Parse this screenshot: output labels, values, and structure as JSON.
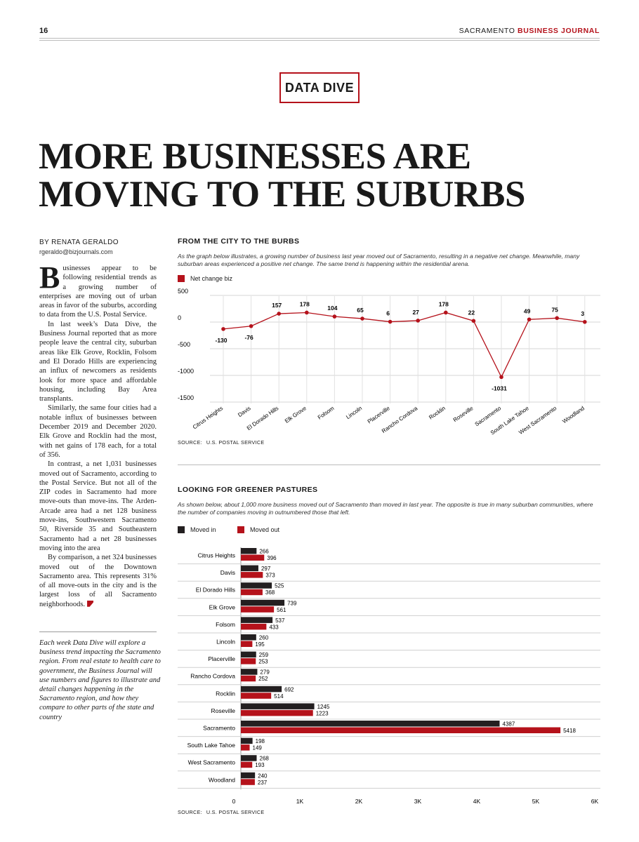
{
  "header": {
    "page_number": "16",
    "publication_prefix": "SACRAMENTO",
    "publication_brand": "BUSINESS JOURNAL"
  },
  "kicker": "DATA DIVE",
  "headline_line1": "MORE BUSINESSES ARE",
  "headline_line2": "MOVING TO THE SUBURBS",
  "byline": "BY RENATA GERALDO",
  "byline_email": "rgeraldo@bizjournals.com",
  "article": {
    "dropcap": "B",
    "p1": "usinesses appear to be following residential trends as a growing number of enterprises are moving out of urban areas in favor of the suburbs, according to data from the U.S. Postal Service.",
    "p2": "In last week’s Data Dive, the Business Journal reported that as more people leave the central city, suburban areas like Elk Grove, Rocklin, Folsom and El Dorado Hills are experiencing an influx of newcomers as residents look for more space and affordable housing, including Bay Area transplants.",
    "p3": "Similarly, the same four cities had a notable influx of businesses between December 2019 and December 2020. Elk Grove and Rocklin had the most, with net gains of 178 each, for a total of 356.",
    "p4": "In contrast, a net 1,031 businesses moved out of Sacramento, according to the Postal Service. But not all of the ZIP codes in Sacramento had more move-outs than move-ins. The Arden-Arcade area had a net 128 business move-ins, Southwestern Sacramento 50, Riverside 35 and Southeastern Sacramento had a net 28 businesses moving into the area",
    "p5": "By comparison, a net 324 businesses moved out of the Downtown Sacramento area. This represents 31% of all move-outs in the city and is the largest loss of all Sacramento neighborhoods."
  },
  "sidebar_note": "Each week Data Dive will explore a business trend impacting the Sacramento region. From real estate to health care to government, the Business Journal will use numbers and figures to illustrate and detail changes happening in the Sacramento region, and how they compare to other parts of the state and country",
  "colors": {
    "accent": "#b5121b",
    "dark": "#231f20"
  },
  "chart_data": [
    {
      "type": "line",
      "title": "FROM THE CITY TO THE BURBS",
      "subtitle": "As the graph below illustrates, a growing number of business last year moved out of Sacramento, resulting in a negative net change. Meanwhile, many suburban areas experienced a positive net change. The same trend is happening within the residential arena.",
      "legend": "Net change biz",
      "categories": [
        "Citrus Heights",
        "Davis",
        "El Dorado Hills",
        "Elk Grove",
        "Folsom",
        "Lincoln",
        "Placerville",
        "Rancho Cordova",
        "Rocklin",
        "Roseville",
        "Sacramento",
        "South Lake Tahoe",
        "West Sacramento",
        "Woodland"
      ],
      "values": [
        -130,
        -76,
        157,
        178,
        104,
        65,
        6,
        27,
        178,
        22,
        -1031,
        49,
        75,
        3
      ],
      "yticks": [
        500,
        0,
        -500,
        -1000,
        -1500
      ],
      "ylim": [
        -1500,
        500
      ],
      "source_label": "SOURCE:",
      "source": "U.S. POSTAL SERVICE"
    },
    {
      "type": "bar",
      "title": "LOOKING FOR GREENER PASTURES",
      "subtitle": "As shown below, about 1,000 more business moved out of Sacramento than moved in last year. The opposite is true in many suburban communities, where the number of companies moving in outnumbered those that left.",
      "categories": [
        "Citrus Heights",
        "Davis",
        "El Dorado Hills",
        "Elk Grove",
        "Folsom",
        "Lincoln",
        "Placerville",
        "Rancho Cordova",
        "Rocklin",
        "Roseville",
        "Sacramento",
        "South Lake Tahoe",
        "West Sacramento",
        "Woodland"
      ],
      "series": [
        {
          "name": "Moved in",
          "color": "#231f20",
          "values": [
            266,
            297,
            525,
            739,
            537,
            260,
            259,
            279,
            692,
            1245,
            4387,
            198,
            268,
            240
          ]
        },
        {
          "name": "Moved out",
          "color": "#b5121b",
          "values": [
            396,
            373,
            368,
            561,
            433,
            195,
            253,
            252,
            514,
            1223,
            5418,
            149,
            193,
            237
          ]
        }
      ],
      "xticks": [
        "0",
        "1K",
        "2K",
        "3K",
        "4K",
        "5K",
        "6K"
      ],
      "xlim": [
        0,
        6000
      ],
      "orientation": "horizontal",
      "source_label": "SOURCE:",
      "source": "U.S. POSTAL SERVICE"
    }
  ]
}
